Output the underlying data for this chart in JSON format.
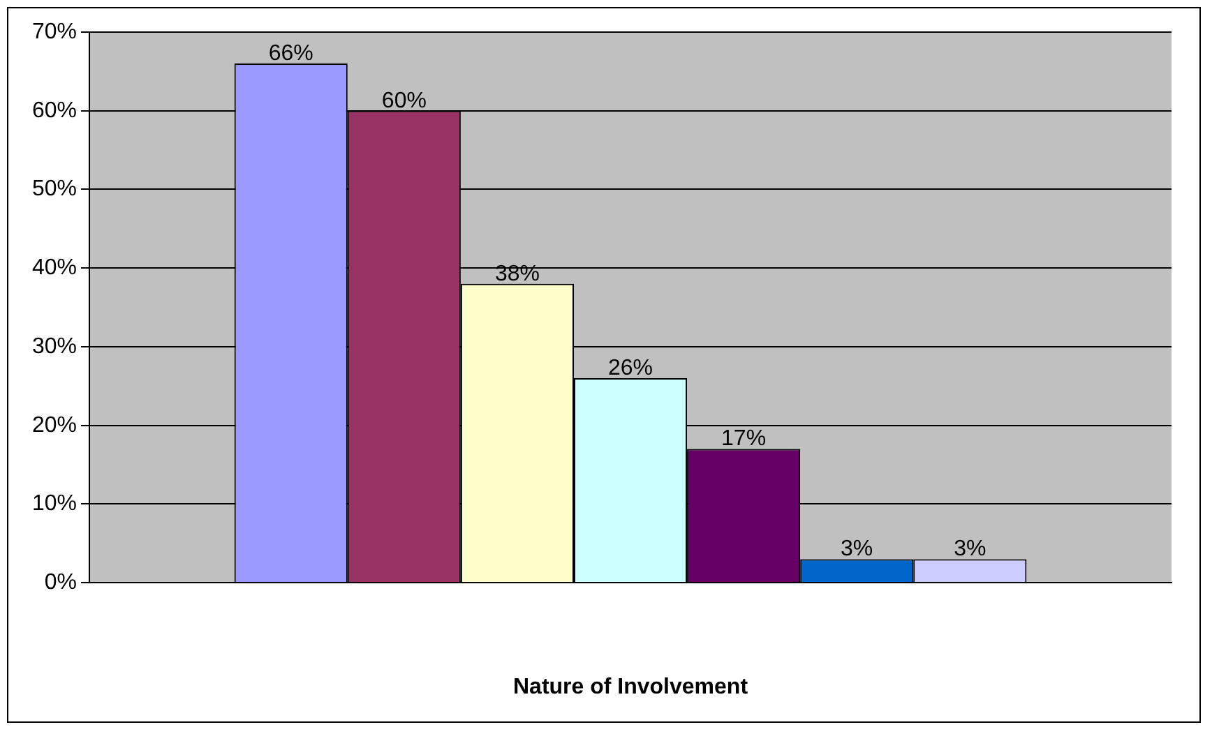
{
  "chart_data": {
    "type": "bar",
    "xlabel": "Nature of Involvement",
    "categories": [
      null
    ],
    "series": [
      {
        "color": "#9999ff",
        "values": [
          66
        ],
        "value_labels": [
          "66%"
        ]
      },
      {
        "color": "#993366",
        "values": [
          60
        ],
        "value_labels": [
          "60%"
        ]
      },
      {
        "color": "#ffffcc",
        "values": [
          38
        ],
        "value_labels": [
          "38%"
        ]
      },
      {
        "color": "#ccffff",
        "values": [
          26
        ],
        "value_labels": [
          "26%"
        ]
      },
      {
        "color": "#660066",
        "values": [
          17
        ],
        "value_labels": [
          "17%"
        ]
      },
      {
        "color": "#0066cc",
        "values": [
          3
        ],
        "value_labels": [
          "3%"
        ]
      },
      {
        "color": "#ccccff",
        "values": [
          3
        ],
        "value_labels": [
          "3%"
        ]
      }
    ],
    "ylim": [
      0,
      70
    ],
    "yticks": [
      {
        "value": 0,
        "label": "0%"
      },
      {
        "value": 10,
        "label": "10%"
      },
      {
        "value": 20,
        "label": "20%"
      },
      {
        "value": 30,
        "label": "30%"
      },
      {
        "value": 40,
        "label": "40%"
      },
      {
        "value": 50,
        "label": "50%"
      },
      {
        "value": 60,
        "label": "60%"
      },
      {
        "value": 70,
        "label": "70%"
      }
    ],
    "grid": "y",
    "legend": false
  }
}
